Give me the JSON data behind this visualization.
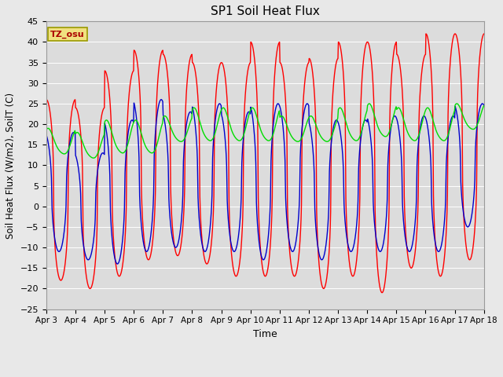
{
  "title": "SP1 Soil Heat Flux",
  "xlabel": "Time",
  "ylabel": "Soil Heat Flux (W/m2), SoilT (C)",
  "ylim": [
    -25,
    45
  ],
  "yticks": [
    -25,
    -20,
    -15,
    -10,
    -5,
    0,
    5,
    10,
    15,
    20,
    25,
    30,
    35,
    40,
    45
  ],
  "xtick_labels": [
    "Apr 3",
    "Apr 4",
    "Apr 5",
    "Apr 6",
    "Apr 7",
    "Apr 8",
    "Apr 9",
    "Apr 10",
    "Apr 11",
    "Apr 12",
    "Apr 13",
    "Apr 14",
    "Apr 15",
    "Apr 16",
    "Apr 17",
    "Apr 18"
  ],
  "colors": {
    "sp1_SHF_2": "#ff0000",
    "sp1_SHF_1": "#0000cc",
    "sp1_SHF_T": "#00dd00"
  },
  "timezone_label": "TZ_osu",
  "background_color": "#e8e8e8",
  "plot_bg_color": "#dcdcdc",
  "grid_color": "#ffffff",
  "n_days": 15,
  "points_per_day": 144,
  "shf2_peaks": [
    26,
    24,
    33,
    38,
    37,
    35,
    35,
    40,
    35,
    36,
    40,
    40,
    37,
    42,
    42
  ],
  "shf2_troughs": [
    -18,
    -20,
    -17,
    -13,
    -12,
    -14,
    -17,
    -17,
    -17,
    -20,
    -17,
    -21,
    -15,
    -17,
    -13
  ],
  "shf1_peaks": [
    18,
    13,
    21,
    26,
    23,
    25,
    23,
    25,
    25,
    21,
    21,
    22,
    22,
    22,
    25
  ],
  "shf1_troughs": [
    -11,
    -13,
    -14,
    -11,
    -10,
    -11,
    -11,
    -13,
    -11,
    -13,
    -11,
    -11,
    -11,
    -11,
    -5
  ],
  "shft_peaks": [
    19,
    18,
    21,
    21,
    22,
    24,
    24,
    24,
    22,
    22,
    24,
    25,
    24,
    24,
    25
  ],
  "shft_troughs": [
    12,
    11,
    12,
    12,
    15,
    15,
    15,
    15,
    15,
    15,
    15,
    16,
    15,
    15,
    18
  ]
}
